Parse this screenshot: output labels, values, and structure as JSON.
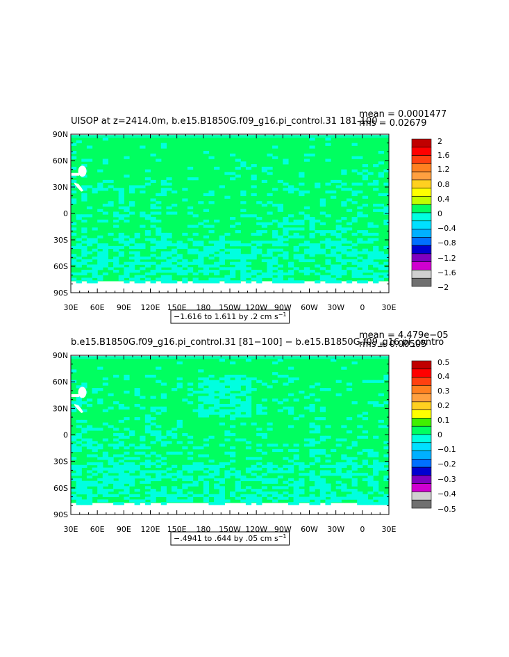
{
  "colors": {
    "land_missing": "#ffffff",
    "ocean_main": "#00ff60",
    "ocean_light": "#00ffe0",
    "frame": "#000000"
  },
  "x_tick_labels": [
    "30E",
    "60E",
    "90E",
    "120E",
    "150E",
    "180",
    "150W",
    "120W",
    "90W",
    "60W",
    "30W",
    "0",
    "30E"
  ],
  "y_tick_labels": [
    "90N",
    "60N",
    "30N",
    "0",
    "30S",
    "60S",
    "90S"
  ],
  "chart_data": [
    {
      "type": "heatmap",
      "title": "UISOP at z=2414.0m, b.e15.B1850G.f09_g16.pi_control.31 181-100",
      "stats": [
        "mean = 0.0001477",
        "rms = 0.02679"
      ],
      "contour_info": "−1.616 to 1.611 by .2 cm s",
      "contour_info_sup": "−1",
      "x_range_deg_lon": [
        30,
        390
      ],
      "y_range_deg_lat": [
        -90,
        90
      ],
      "legend_labels": [
        "2",
        "1.6",
        "1.2",
        "0.8",
        "0.4",
        "0",
        "−0.4",
        "−0.8",
        "−1.2",
        "−1.6",
        "−2"
      ],
      "legend_colors": [
        "#c00000",
        "#ff0000",
        "#ff4010",
        "#ff8020",
        "#ffa040",
        "#ffd020",
        "#ffff00",
        "#c0ff00",
        "#00ff60",
        "#00ffe0",
        "#00e0ff",
        "#00b0ff",
        "#0070ff",
        "#0000d0",
        "#8000c0",
        "#d000d0",
        "#d0d0d0",
        "#707070"
      ]
    },
    {
      "type": "heatmap",
      "title": "b.e15.B1850G.f09_g16.pi_control.31 [81−100] − b.e15.B1850G.f09_g16.pi_contro",
      "stats": [
        "mean = 4.479e−05",
        "rms = 0.00505"
      ],
      "contour_info": "−.4941 to .644 by .05 cm s",
      "contour_info_sup": "−1",
      "x_range_deg_lon": [
        30,
        390
      ],
      "y_range_deg_lat": [
        -90,
        90
      ],
      "legend_labels": [
        "0.5",
        "0.4",
        "0.3",
        "0.2",
        "0.1",
        "0",
        "−0.1",
        "−0.2",
        "−0.3",
        "−0.4",
        "−0.5"
      ],
      "legend_colors": [
        "#c00000",
        "#ff0000",
        "#ff4010",
        "#ff8020",
        "#ffa040",
        "#ffd020",
        "#ffff00",
        "#40f000",
        "#00ff60",
        "#00ffe0",
        "#00e0ff",
        "#00b0ff",
        "#0070ff",
        "#0000d0",
        "#8000c0",
        "#d000d0",
        "#d0d0d0",
        "#707070"
      ]
    }
  ]
}
